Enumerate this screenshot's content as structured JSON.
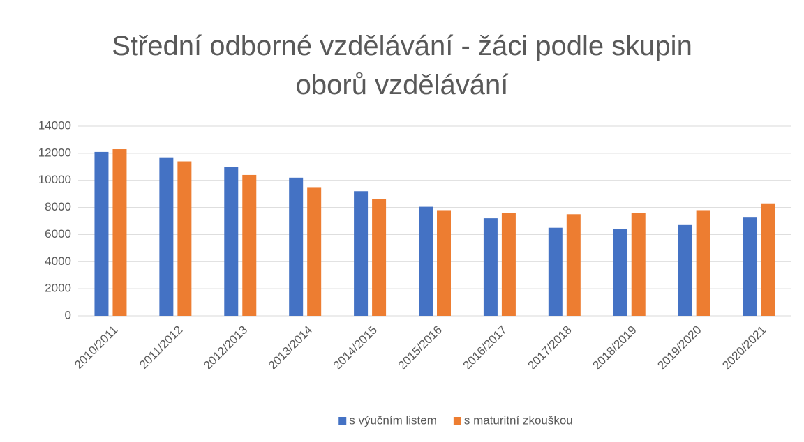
{
  "chart_data": {
    "type": "bar",
    "title": "Střední odborné vzdělávání - žáci podle skupin oborů vzdělávání",
    "categories": [
      "2010/2011",
      "2011/2012",
      "2012/2013",
      "2013/2014",
      "2014/2015",
      "2015/2016",
      "2016/2017",
      "2017/2018",
      "2018/2019",
      "2019/2020",
      "2020/2021"
    ],
    "series": [
      {
        "name": "s výučním listem",
        "color": "#4472c4",
        "values": [
          12100,
          11700,
          11000,
          10200,
          9200,
          8050,
          7200,
          6500,
          6400,
          6700,
          7300
        ]
      },
      {
        "name": "s maturitní zkouškou",
        "color": "#ed7d31",
        "values": [
          12300,
          11400,
          10400,
          9500,
          8600,
          7800,
          7600,
          7500,
          7600,
          7800,
          8300
        ]
      }
    ],
    "ylim": [
      0,
      14000
    ],
    "yticks": [
      0,
      2000,
      4000,
      6000,
      8000,
      10000,
      12000,
      14000
    ],
    "grid": true,
    "legend": "bottom"
  }
}
